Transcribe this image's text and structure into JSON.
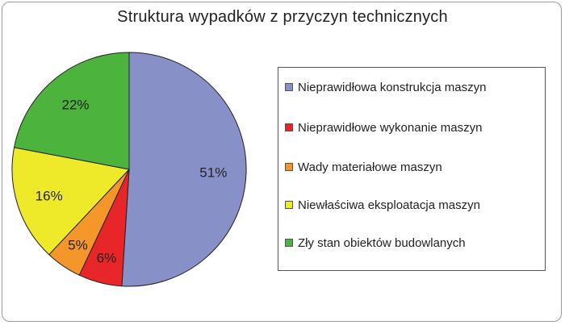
{
  "chart_data": {
    "type": "pie",
    "title": "Struktura wypadków z przyczyn technicznych",
    "slices": [
      {
        "label": "Nieprawidłowa konstrukcja maszyn",
        "value": 51,
        "display": "51%",
        "color": "#8890c8"
      },
      {
        "label": "Nieprawidłowe wykonanie maszyn",
        "value": 6,
        "display": "6%",
        "color": "#e8262a"
      },
      {
        "label": "Wady materiałowe maszyn",
        "value": 5,
        "display": "5%",
        "color": "#f5962a"
      },
      {
        "label": "Niewłaściwa eksploatacja maszyn",
        "value": 16,
        "display": "16%",
        "color": "#eeea2a"
      },
      {
        "label": "Zły stan obiektów budowlanych",
        "value": 22,
        "display": "22%",
        "color": "#4cb43c"
      }
    ],
    "legend_position": "right"
  }
}
